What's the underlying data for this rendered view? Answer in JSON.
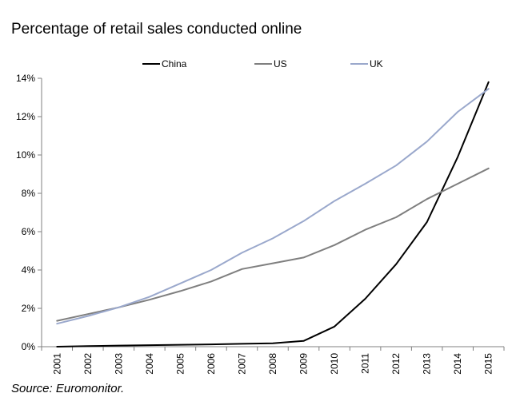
{
  "chart_data": {
    "type": "line",
    "title": "Percentage of retail sales conducted online",
    "source": "Source: Euromonitor.",
    "xlabel": "",
    "ylabel": "",
    "x": [
      "2001",
      "2002",
      "2003",
      "2004",
      "2005",
      "2006",
      "2007",
      "2008",
      "2009",
      "2010",
      "2011",
      "2012",
      "2013",
      "2014",
      "2015"
    ],
    "ylim": [
      0,
      14
    ],
    "yticks": [
      0,
      2,
      4,
      6,
      8,
      10,
      12,
      14
    ],
    "ytick_labels": [
      "0%",
      "2%",
      "4%",
      "6%",
      "8%",
      "10%",
      "12%",
      "14%"
    ],
    "grid": false,
    "legend": "top",
    "series": [
      {
        "name": "China",
        "color": "#000000",
        "values": [
          0.0,
          0.03,
          0.06,
          0.08,
          0.1,
          0.12,
          0.15,
          0.18,
          0.3,
          1.05,
          2.5,
          4.3,
          6.5,
          9.9,
          13.8
        ]
      },
      {
        "name": "US",
        "color": "#7f7f7f",
        "values": [
          1.35,
          1.7,
          2.05,
          2.45,
          2.9,
          3.4,
          4.05,
          4.35,
          4.65,
          5.3,
          6.1,
          6.75,
          7.7,
          8.5,
          9.3
        ]
      },
      {
        "name": "UK",
        "color": "#9aa8cc",
        "values": [
          1.2,
          1.6,
          2.05,
          2.6,
          3.3,
          4.0,
          4.9,
          5.65,
          6.55,
          7.6,
          8.5,
          9.45,
          10.7,
          12.25,
          13.45
        ]
      }
    ]
  }
}
